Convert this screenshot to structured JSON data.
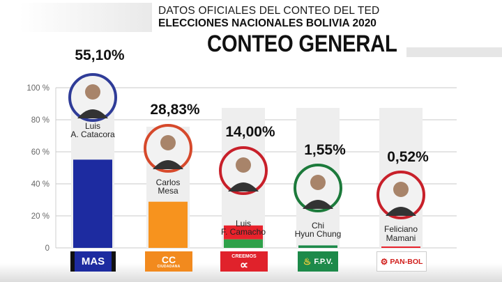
{
  "header": {
    "line1": "DATOS OFICIALES DEL CONTEO DEL TED",
    "line2": "ELECCIONES NACIONALES BOLIVIA 2020",
    "title": "CONTEO GENERAL"
  },
  "chart_data": {
    "type": "bar",
    "categories": [
      "MAS",
      "CC",
      "CREEMOS",
      "F.P.V.",
      "PAN-BOL"
    ],
    "candidates": [
      "Luis A. Catacora",
      "Carlos Mesa",
      "Luis F. Camacho",
      "Chi Hyun Chung",
      "Feliciano Mamani"
    ],
    "value_labels": [
      "55,10%",
      "28,83%",
      "14,00%",
      "1,55%",
      "0,52%"
    ],
    "values": [
      55.1,
      28.83,
      14.0,
      1.55,
      0.52
    ],
    "yticks": [
      "0",
      "20 %",
      "40 %",
      "60 %",
      "80 %",
      "100 %"
    ],
    "ylim": [
      0,
      100
    ],
    "grid": true,
    "colors": [
      "#1d2ba0",
      "#f7931e",
      "#e8222c",
      "#1d8a4a",
      "#e8222c"
    ],
    "ring_colors": [
      "#2f3c98",
      "#d6492b",
      "#c8202a",
      "#1c7a3b",
      "#c8202a"
    ]
  },
  "badges": {
    "mas": "MAS",
    "cc": "CC",
    "cc_sub": "CIUDADANA",
    "creemos": "CREEMOS",
    "creemos_symbol": "∝",
    "fpv": "F.P.V.",
    "panbol": "PAN-BOL"
  }
}
